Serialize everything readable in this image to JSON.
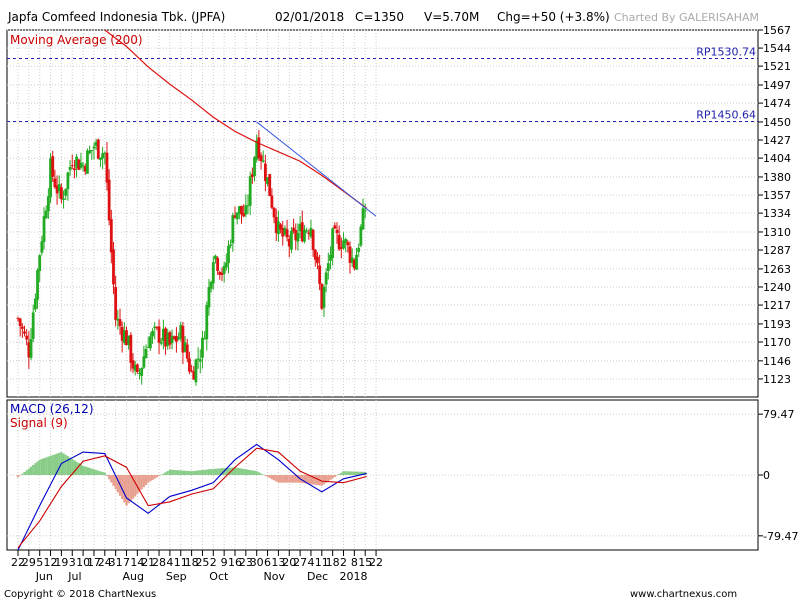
{
  "header": {
    "title": "Japfa Comfeed Indonesia Tbk. (JPFA)",
    "date": "02/01/2018",
    "close": "C=1350",
    "volume": "V=5.70M",
    "change": "Chg=+50 (+3.8%)",
    "brand": "Charted By GALERISAHAM"
  },
  "footer": {
    "copyright": "Copyright © 2018 ChartNexus",
    "website": "www.chartnexus.com"
  },
  "chart_data": [
    {
      "type": "candlestick",
      "title": "Japfa Comfeed Indonesia Tbk. (JPFA)",
      "indicator_label": "Moving Average (200)",
      "ylim": [
        1100,
        1567
      ],
      "y_ticks": [
        "1567",
        "1544",
        "1521",
        "1497",
        "1474",
        "1450",
        "1427",
        "1404",
        "1380",
        "1357",
        "1334",
        "1310",
        "1287",
        "1263",
        "1240",
        "1217",
        "1193",
        "1170",
        "1146",
        "1123"
      ],
      "reference_lines": [
        {
          "label": "RP1530.74",
          "value": 1530.74
        },
        {
          "label": "RP1450.64",
          "value": 1450.64
        }
      ],
      "trendline": {
        "start": {
          "date": "2017-10-23",
          "value": 1450
        },
        "end": {
          "date": "2018-01-08",
          "value": 1330
        }
      },
      "moving_average": [
        {
          "date": "2017-07-17",
          "value": 1567
        },
        {
          "date": "2017-07-31",
          "value": 1546
        },
        {
          "date": "2017-08-14",
          "value": 1520
        },
        {
          "date": "2017-08-28",
          "value": 1498
        },
        {
          "date": "2017-09-11",
          "value": 1478
        },
        {
          "date": "2017-09-25",
          "value": 1456
        },
        {
          "date": "2017-10-09",
          "value": 1438
        },
        {
          "date": "2017-10-23",
          "value": 1424
        },
        {
          "date": "2017-11-06",
          "value": 1412
        },
        {
          "date": "2017-11-20",
          "value": 1400
        },
        {
          "date": "2017-12-04",
          "value": 1382
        },
        {
          "date": "2017-12-18",
          "value": 1362
        },
        {
          "date": "2018-01-02",
          "value": 1340
        }
      ],
      "price_path": [
        {
          "date": "2017-05-22",
          "value": 1200
        },
        {
          "date": "2017-05-29",
          "value": 1160
        },
        {
          "date": "2017-06-05",
          "value": 1285
        },
        {
          "date": "2017-06-12",
          "value": 1390
        },
        {
          "date": "2017-06-19",
          "value": 1350
        },
        {
          "date": "2017-06-26",
          "value": 1405
        },
        {
          "date": "2017-07-03",
          "value": 1395
        },
        {
          "date": "2017-07-10",
          "value": 1420
        },
        {
          "date": "2017-07-17",
          "value": 1410
        },
        {
          "date": "2017-07-24",
          "value": 1200
        },
        {
          "date": "2017-07-31",
          "value": 1175
        },
        {
          "date": "2017-08-07",
          "value": 1120
        },
        {
          "date": "2017-08-14",
          "value": 1175
        },
        {
          "date": "2017-08-21",
          "value": 1180
        },
        {
          "date": "2017-08-28",
          "value": 1165
        },
        {
          "date": "2017-09-04",
          "value": 1180
        },
        {
          "date": "2017-09-11",
          "value": 1130
        },
        {
          "date": "2017-09-18",
          "value": 1165
        },
        {
          "date": "2017-09-25",
          "value": 1285
        },
        {
          "date": "2017-10-02",
          "value": 1255
        },
        {
          "date": "2017-10-09",
          "value": 1340
        },
        {
          "date": "2017-10-16",
          "value": 1330
        },
        {
          "date": "2017-10-23",
          "value": 1430
        },
        {
          "date": "2017-10-30",
          "value": 1375
        },
        {
          "date": "2017-11-06",
          "value": 1310
        },
        {
          "date": "2017-11-13",
          "value": 1295
        },
        {
          "date": "2017-11-20",
          "value": 1310
        },
        {
          "date": "2017-11-27",
          "value": 1320
        },
        {
          "date": "2017-12-04",
          "value": 1220
        },
        {
          "date": "2017-12-11",
          "value": 1300
        },
        {
          "date": "2017-12-18",
          "value": 1300
        },
        {
          "date": "2017-12-25",
          "value": 1270
        },
        {
          "date": "2018-01-02",
          "value": 1350
        }
      ]
    },
    {
      "type": "line",
      "title": "MACD (26,12)",
      "signal_label": "Signal (9)",
      "ylim": [
        -98,
        98
      ],
      "y_ticks": [
        "79.47",
        "0",
        "-79.47"
      ],
      "series": [
        {
          "name": "MACD (26,12)",
          "color": "#0000cc",
          "points": [
            {
              "date": "2017-05-22",
              "value": -98
            },
            {
              "date": "2017-06-05",
              "value": -40
            },
            {
              "date": "2017-06-19",
              "value": 15
            },
            {
              "date": "2017-07-03",
              "value": 30
            },
            {
              "date": "2017-07-17",
              "value": 28
            },
            {
              "date": "2017-07-31",
              "value": -30
            },
            {
              "date": "2017-08-14",
              "value": -50
            },
            {
              "date": "2017-08-28",
              "value": -28
            },
            {
              "date": "2017-09-11",
              "value": -20
            },
            {
              "date": "2017-09-25",
              "value": -10
            },
            {
              "date": "2017-10-09",
              "value": 20
            },
            {
              "date": "2017-10-23",
              "value": 40
            },
            {
              "date": "2017-11-06",
              "value": 20
            },
            {
              "date": "2017-11-20",
              "value": -5
            },
            {
              "date": "2017-12-04",
              "value": -22
            },
            {
              "date": "2017-12-18",
              "value": -5
            },
            {
              "date": "2018-01-02",
              "value": 2
            }
          ]
        },
        {
          "name": "Signal (9)",
          "color": "#cc0000",
          "points": [
            {
              "date": "2017-05-22",
              "value": -95
            },
            {
              "date": "2017-06-05",
              "value": -60
            },
            {
              "date": "2017-06-19",
              "value": -15
            },
            {
              "date": "2017-07-03",
              "value": 18
            },
            {
              "date": "2017-07-17",
              "value": 25
            },
            {
              "date": "2017-07-31",
              "value": 10
            },
            {
              "date": "2017-08-14",
              "value": -40
            },
            {
              "date": "2017-08-28",
              "value": -35
            },
            {
              "date": "2017-09-11",
              "value": -25
            },
            {
              "date": "2017-09-25",
              "value": -18
            },
            {
              "date": "2017-10-09",
              "value": 10
            },
            {
              "date": "2017-10-23",
              "value": 35
            },
            {
              "date": "2017-11-06",
              "value": 30
            },
            {
              "date": "2017-11-20",
              "value": 5
            },
            {
              "date": "2017-12-04",
              "value": -8
            },
            {
              "date": "2017-12-18",
              "value": -10
            },
            {
              "date": "2018-01-02",
              "value": -2
            }
          ]
        }
      ]
    }
  ],
  "x_axis": {
    "days": [
      "22",
      "29",
      "5",
      "12",
      "19",
      "3",
      "10",
      "17",
      "24",
      "31",
      "7",
      "14",
      "21",
      "28",
      "4",
      "11",
      "18",
      "25",
      "2",
      "9",
      "16",
      "23",
      "30",
      "6",
      "13",
      "20",
      "27",
      "4",
      "11",
      "18",
      "2",
      "8",
      "15",
      "22"
    ],
    "months": [
      "Jun",
      "Jul",
      "Aug",
      "Sep",
      "Oct",
      "Nov",
      "Dec",
      "2018"
    ]
  },
  "colors": {
    "up": "#22aa22",
    "down": "#dd1111",
    "ma": "#dd1111",
    "trend": "#3355dd",
    "refline": "#2222aa",
    "macd_pos": "#88cc88",
    "macd_neg": "#e8a090"
  }
}
